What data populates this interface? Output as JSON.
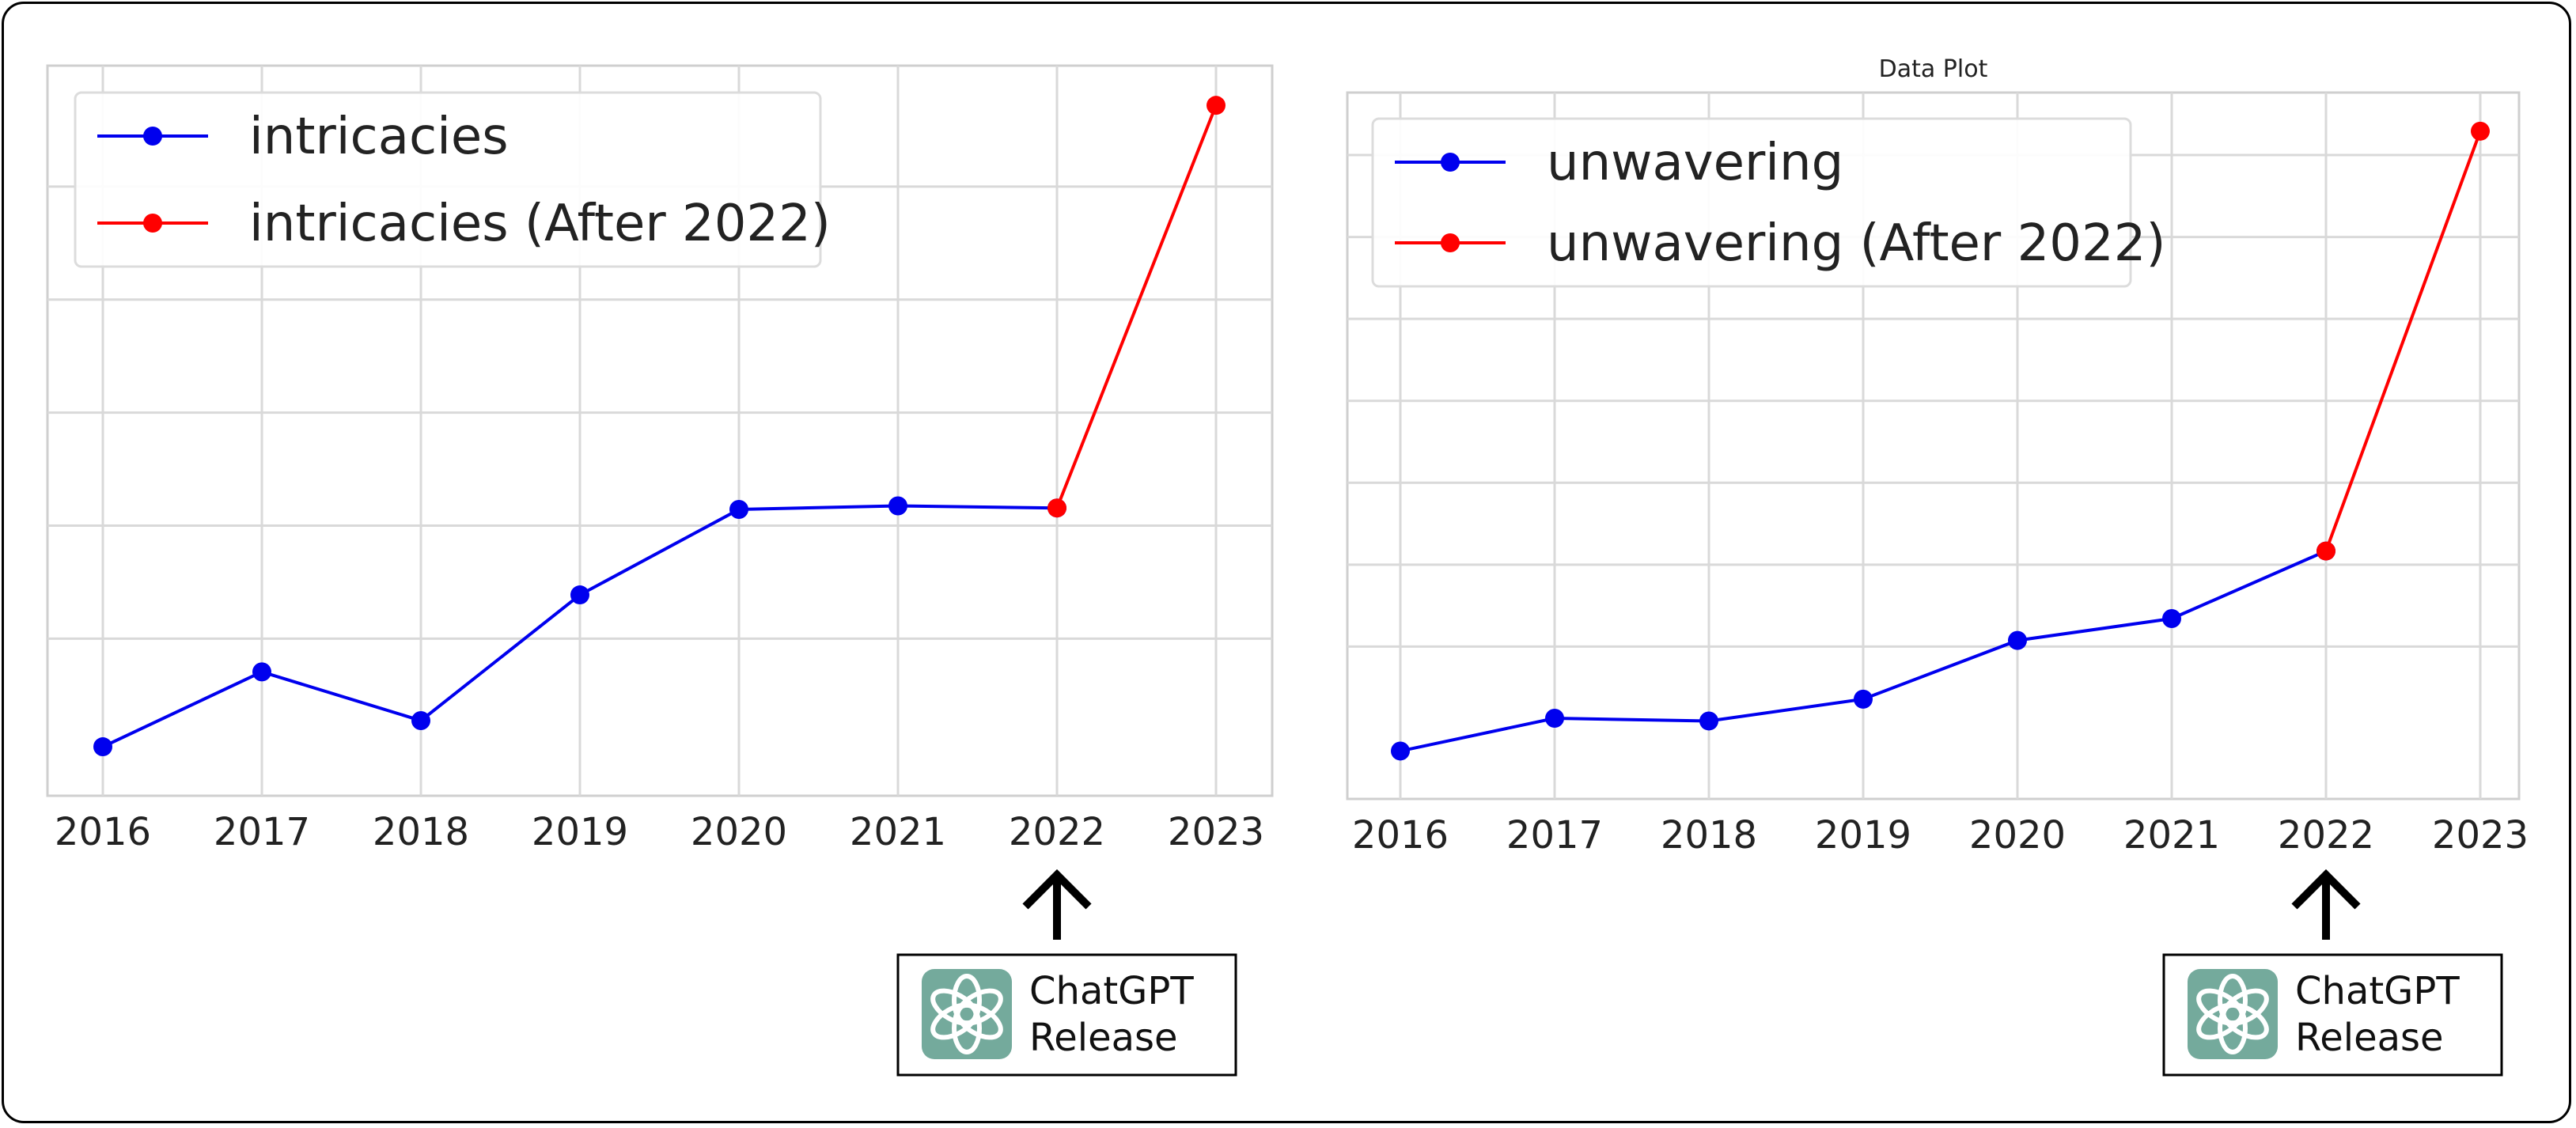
{
  "colors": {
    "pre": "#0000ee",
    "post": "#ff0000",
    "grid": "#d9d9d9",
    "logo_bg": "#74aa9c"
  },
  "icons": {
    "arrow": "arrow-up-icon",
    "logo": "openai-logo-icon"
  },
  "chart_data": [
    {
      "type": "line",
      "title": "",
      "xlabel": "",
      "ylabel": "",
      "x": [
        "2016",
        "2017",
        "2018",
        "2019",
        "2020",
        "2021",
        "2022",
        "2023"
      ],
      "ylim": [
        0,
        100
      ],
      "grid": true,
      "legend_position": "top-left",
      "series": [
        {
          "name": "intricacies",
          "color": "#0000ee",
          "x": [
            "2016",
            "2017",
            "2018",
            "2019",
            "2020",
            "2021",
            "2022"
          ],
          "values": [
            4.7,
            15.3,
            8.4,
            26.2,
            38.3,
            38.8,
            38.5
          ]
        },
        {
          "name": "intricacies (After 2022)",
          "color": "#ff0000",
          "x": [
            "2022",
            "2023"
          ],
          "values": [
            38.5,
            95.5
          ]
        }
      ],
      "annotation": {
        "at": "2022",
        "text_line1": "ChatGPT",
        "text_line2": "Release"
      }
    },
    {
      "type": "line",
      "title": "Data Plot",
      "xlabel": "",
      "ylabel": "",
      "x": [
        "2016",
        "2017",
        "2018",
        "2019",
        "2020",
        "2021",
        "2022",
        "2023"
      ],
      "ylim": [
        0,
        100
      ],
      "grid": true,
      "legend_position": "top-left",
      "series": [
        {
          "name": "unwavering",
          "color": "#0000ee",
          "x": [
            "2016",
            "2017",
            "2018",
            "2019",
            "2020",
            "2021",
            "2022"
          ],
          "values": [
            4.7,
            9.5,
            9.1,
            12.3,
            20.9,
            24.1,
            34.0
          ]
        },
        {
          "name": "unwavering (After 2022)",
          "color": "#ff0000",
          "x": [
            "2022",
            "2023"
          ],
          "values": [
            34.0,
            95.5
          ]
        }
      ],
      "annotation": {
        "at": "2022",
        "text_line1": "ChatGPT",
        "text_line2": "Release"
      }
    }
  ]
}
